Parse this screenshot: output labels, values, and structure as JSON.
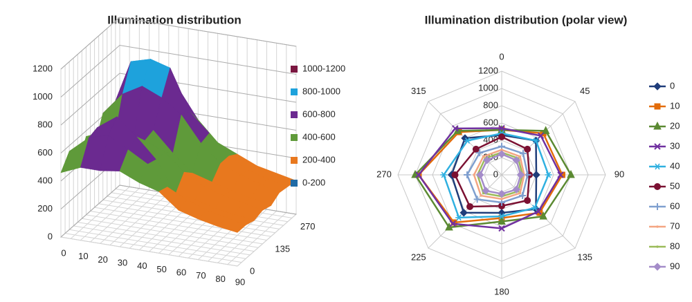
{
  "chart_data": [
    {
      "type": "surface",
      "title": "Illumination distribution",
      "x": [
        0,
        10,
        20,
        30,
        40,
        50,
        60,
        70,
        80,
        90
      ],
      "depth_categories": [
        0,
        null,
        null,
        135,
        null,
        null,
        270,
        null
      ],
      "z": [
        [
          460,
          520,
          520,
          540,
          480,
          440,
          330,
          290,
          260,
          240
        ],
        [
          560,
          680,
          720,
          640,
          560,
          420,
          350,
          300,
          270,
          240
        ],
        [
          400,
          700,
          800,
          680,
          540,
          320,
          300,
          260,
          240,
          220
        ],
        [
          560,
          620,
          680,
          600,
          540,
          420,
          340,
          300,
          270,
          240
        ],
        [
          440,
          500,
          540,
          620,
          480,
          360,
          320,
          280,
          250,
          220
        ],
        [
          620,
          780,
          860,
          800,
          700,
          520,
          400,
          340,
          300,
          260
        ],
        [
          580,
          960,
          1000,
          960,
          670,
          540,
          400,
          320,
          280,
          250
        ],
        [
          600,
          700,
          720,
          760,
          560,
          420,
          360,
          300,
          270,
          240
        ]
      ],
      "zlim": [
        0,
        1200
      ],
      "zticks": [
        0,
        200,
        400,
        600,
        800,
        1000,
        1200
      ],
      "bands": [
        {
          "name": "1000-1200",
          "range": [
            1000,
            1200
          ],
          "color": "#7a1640"
        },
        {
          "name": "800-1000",
          "range": [
            800,
            1000
          ],
          "color": "#1ea2dc"
        },
        {
          "name": "600-800",
          "range": [
            600,
            800
          ],
          "color": "#6b2a90"
        },
        {
          "name": "400-600",
          "range": [
            400,
            600
          ],
          "color": "#5f9a3a"
        },
        {
          "name": "200-400",
          "range": [
            200,
            400
          ],
          "color": "#e8781e"
        },
        {
          "name": "0-200",
          "range": [
            0,
            200
          ],
          "color": "#1f6aa5"
        }
      ]
    },
    {
      "type": "radar",
      "title": "Illumination distribution  (polar view)",
      "categories": [
        "0",
        "45",
        "90",
        "135",
        "180",
        "225",
        "270",
        "315"
      ],
      "rlim": [
        0,
        1200
      ],
      "rticks": [
        0,
        200,
        400,
        600,
        800,
        1000,
        1200
      ],
      "series": [
        {
          "name": "0",
          "color": "#1f3d7a",
          "marker": "diamond",
          "values": [
            460,
            560,
            400,
            560,
            440,
            620,
            580,
            600
          ]
        },
        {
          "name": "10",
          "color": "#e36c0a",
          "marker": "square",
          "values": [
            520,
            680,
            700,
            620,
            500,
            780,
            960,
            700
          ]
        },
        {
          "name": "20",
          "color": "#5b8a32",
          "marker": "triangle",
          "values": [
            520,
            720,
            800,
            680,
            540,
            860,
            1000,
            720
          ]
        },
        {
          "name": "30",
          "color": "#7030a0",
          "marker": "x",
          "values": [
            540,
            640,
            680,
            600,
            620,
            800,
            960,
            760
          ]
        },
        {
          "name": "40",
          "color": "#2fb0e0",
          "marker": "star",
          "values": [
            480,
            560,
            540,
            540,
            480,
            700,
            670,
            560
          ]
        },
        {
          "name": "50",
          "color": "#7b1132",
          "marker": "circle",
          "values": [
            440,
            420,
            320,
            420,
            360,
            520,
            540,
            420
          ]
        },
        {
          "name": "60",
          "color": "#7f9fcf",
          "marker": "plus",
          "values": [
            330,
            350,
            300,
            340,
            320,
            400,
            400,
            360
          ]
        },
        {
          "name": "70",
          "color": "#f4a582",
          "marker": "none",
          "values": [
            290,
            300,
            260,
            300,
            280,
            340,
            320,
            300
          ]
        },
        {
          "name": "80",
          "color": "#9bbb59",
          "marker": "none",
          "values": [
            260,
            270,
            240,
            270,
            250,
            300,
            280,
            270
          ]
        },
        {
          "name": "90",
          "color": "#a48cc9",
          "marker": "diamond",
          "values": [
            240,
            240,
            220,
            240,
            220,
            260,
            250,
            240
          ]
        }
      ]
    }
  ]
}
